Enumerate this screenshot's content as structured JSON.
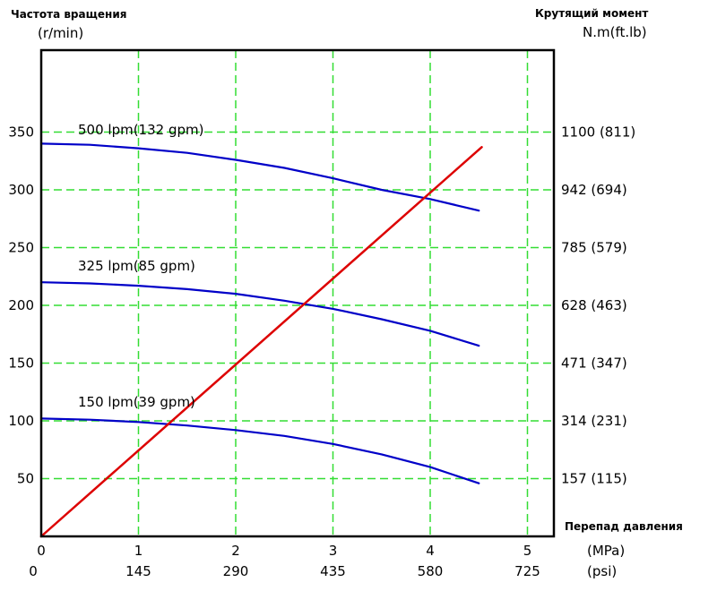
{
  "chart_data": {
    "type": "line",
    "y_left_title": "Частота вращения",
    "y_left_unit": "(r/min)",
    "y_right_title": "Крутящий момент",
    "y_right_unit": "N.m(ft.lb)",
    "x_title": "Перепад давления",
    "x_unit_top": "(MPa)",
    "x_unit_bottom": "(psi)",
    "xlim": [
      0,
      5.25
    ],
    "ylim": [
      0,
      400
    ],
    "x_ticks": [
      0,
      1,
      2,
      3,
      4,
      5
    ],
    "x_tick_labels": [
      "0",
      "1",
      "2",
      "3",
      "4",
      "5"
    ],
    "x_psi_tick_labels": [
      "0",
      "145",
      "290",
      "435",
      "580",
      "725"
    ],
    "y_left_ticks": [
      50,
      100,
      150,
      200,
      250,
      300,
      350
    ],
    "y_left_tick_labels": [
      "50",
      "100",
      "150",
      "200",
      "250",
      "300",
      "350"
    ],
    "y_right_tick_labels": [
      "157 (115)",
      "314 (231)",
      "471 (347)",
      "628 (463)",
      "785 (579)",
      "942 (694)",
      "1100 (811)"
    ],
    "grid": true,
    "series": [
      {
        "name": "500 lpm(132 gpm)",
        "color": "#0000c8",
        "x": [
          0,
          0.5,
          1,
          1.5,
          2,
          2.5,
          3,
          3.5,
          4,
          4.5
        ],
        "y": [
          340,
          339,
          336,
          332,
          326,
          319,
          310,
          300,
          292,
          282
        ]
      },
      {
        "name": "325 lpm(85 gpm)",
        "color": "#0000c8",
        "x": [
          0,
          0.5,
          1,
          1.5,
          2,
          2.5,
          3,
          3.5,
          4,
          4.5
        ],
        "y": [
          220,
          219,
          217,
          214,
          210,
          204,
          197,
          188,
          178,
          165
        ]
      },
      {
        "name": "150 lpm(39 gpm)",
        "color": "#0000c8",
        "x": [
          0,
          0.5,
          1,
          1.5,
          2,
          2.5,
          3,
          3.5,
          4,
          4.5
        ],
        "y": [
          102,
          101,
          99,
          96,
          92,
          87,
          80,
          71,
          60,
          46
        ]
      },
      {
        "name": "",
        "color": "#dd0000",
        "x": [
          0,
          4.53
        ],
        "y": [
          0,
          337
        ]
      }
    ]
  }
}
